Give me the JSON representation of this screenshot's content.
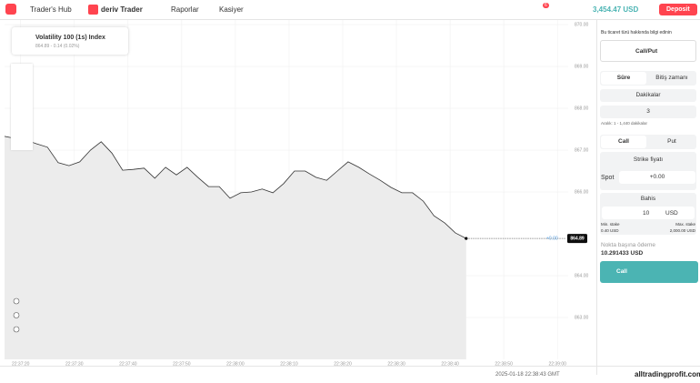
{
  "nav": {
    "hub": "Trader's Hub",
    "trader": "deriv Trader",
    "reports": "Raporlar",
    "cashier": "Kasiyer",
    "badge": "6",
    "balance": "3,454.47 USD",
    "deposit": "Deposit"
  },
  "symbol": {
    "name": "Volatility 100 (1s) Index",
    "quote": "864.89 - 0.14 (0.02%)"
  },
  "chart": {
    "type": "line",
    "x": [
      "22:37:17",
      "22:37:19",
      "22:37:21",
      "22:37:23",
      "22:37:25",
      "22:37:27",
      "22:37:29",
      "22:37:31",
      "22:37:33",
      "22:37:35",
      "22:37:37",
      "22:37:39",
      "22:37:41",
      "22:37:43",
      "22:37:45",
      "22:37:47",
      "22:37:49",
      "22:37:51",
      "22:37:53",
      "22:37:55",
      "22:37:57",
      "22:37:59",
      "22:38:01",
      "22:38:03",
      "22:38:05",
      "22:38:07",
      "22:38:09",
      "22:38:11",
      "22:38:13",
      "22:38:15",
      "22:38:17",
      "22:38:19",
      "22:38:21",
      "22:38:23",
      "22:38:25",
      "22:38:27",
      "22:38:29",
      "22:38:31",
      "22:38:33",
      "22:38:35",
      "22:38:37",
      "22:38:39",
      "22:38:41",
      "22:38:43"
    ],
    "values": [
      867.33,
      867.28,
      867.24,
      867.15,
      867.07,
      866.7,
      866.63,
      866.72,
      867.0,
      867.2,
      866.93,
      866.52,
      866.54,
      866.57,
      866.33,
      866.59,
      866.41,
      866.59,
      866.35,
      866.13,
      866.13,
      865.85,
      865.98,
      866.0,
      866.07,
      865.98,
      866.2,
      866.5,
      866.5,
      866.35,
      866.28,
      866.5,
      866.72,
      866.59,
      866.43,
      866.28,
      866.11,
      865.98,
      865.98,
      865.78,
      865.43,
      865.26,
      865.02,
      864.89
    ],
    "color": "#333333",
    "xlim": [
      "22:37:17",
      "22:39:02"
    ],
    "xticks": [
      "22:37:20",
      "22:37:30",
      "22:37:40",
      "22:37:50",
      "22:38:00",
      "22:38:10",
      "22:38:20",
      "22:38:30",
      "22:38:40",
      "22:38:50",
      "22:39:00"
    ],
    "ylim": [
      862,
      870.11
    ],
    "yticks": [
      {
        "value": 870,
        "label": "870.00"
      },
      {
        "value": 869,
        "label": "869.00"
      },
      {
        "value": 868,
        "label": "868.00"
      },
      {
        "value": 867,
        "label": "867.00"
      },
      {
        "value": 866,
        "label": "866.00"
      },
      {
        "value": 864,
        "label": "864.00"
      },
      {
        "value": 863,
        "label": "863.00"
      }
    ],
    "grid": true,
    "last_label": "864.89",
    "change_label": "+0.00"
  },
  "panel": {
    "learn": "Bu ticaret türü hakkında bilgi edinin",
    "trade_type": "Call/Put",
    "tab_duration": "Süre",
    "tab_end": "Bitiş zamanı",
    "unit": "Dakikalar",
    "duration": "3",
    "range": "Aralık: 1 - 1,440 dakikalar",
    "call": "Call",
    "put": "Put",
    "strike": "Strike fiyatı",
    "spot": "Spot",
    "spot_value": "+0.00",
    "stake_title": "Bahis",
    "stake": "10",
    "currency": "USD",
    "min_label": "Min. stake",
    "min_value": "0.40 USD",
    "max_label": "Max. stake",
    "max_value": "2,000.00 USD",
    "payout_label": "Nokta başına ödeme",
    "payout": "10.291433 USD",
    "buy": "Call"
  },
  "footer": {
    "time": "2025-01-18 22:38:43 GMT",
    "watermark": "alltradingprofit.com"
  }
}
